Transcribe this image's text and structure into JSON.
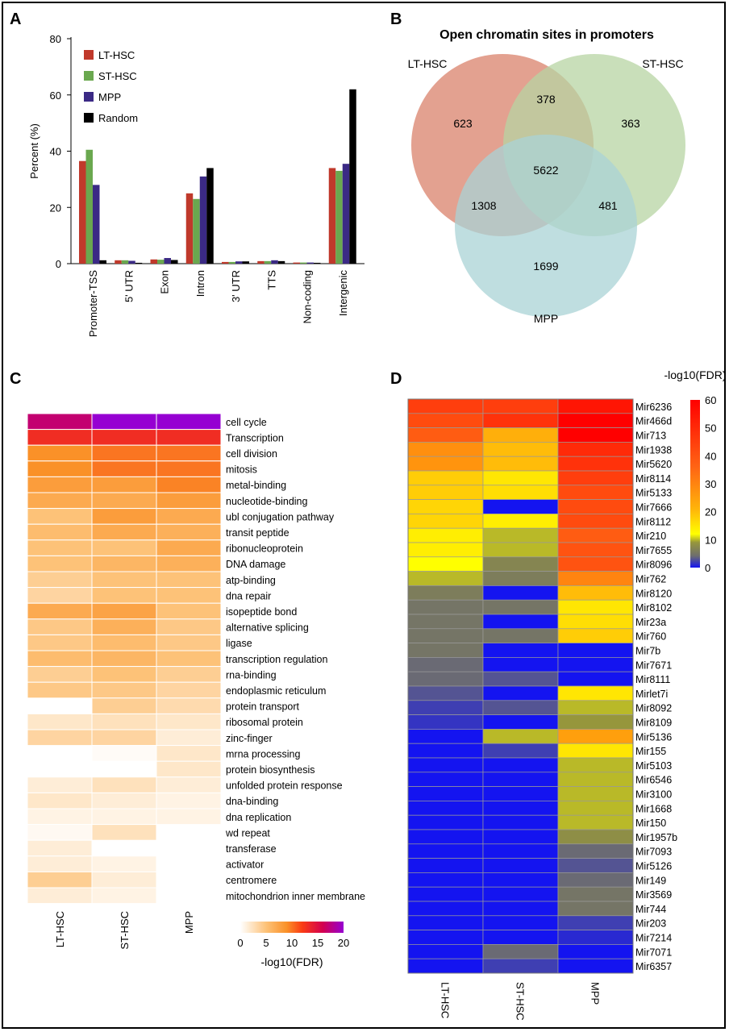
{
  "panels": {
    "a": "A",
    "b": "B",
    "c": "C",
    "d": "D"
  },
  "chart_data": [
    {
      "type": "bar",
      "ylabel": "Percent (%)",
      "ylim": [
        0,
        80
      ],
      "yticks": [
        "0",
        "20",
        "40",
        "60",
        "80"
      ],
      "categories": [
        "Promoter-TSS",
        "5' UTR",
        "Exon",
        "Intron",
        "3' UTR",
        "TTS",
        "Non-coding",
        "Intergenic"
      ],
      "series": [
        {
          "name": "LT-HSC",
          "color": "#c0392b",
          "values": [
            36.5,
            1.2,
            1.5,
            25,
            0.6,
            0.9,
            0.4,
            34
          ]
        },
        {
          "name": "ST-HSC",
          "color": "#6aa84f",
          "values": [
            40.5,
            1.2,
            1.4,
            23,
            0.6,
            0.9,
            0.4,
            33
          ]
        },
        {
          "name": "MPP",
          "color": "#3b2a85",
          "values": [
            28,
            1.0,
            2.0,
            31,
            0.8,
            1.2,
            0.4,
            35.5
          ]
        },
        {
          "name": "Random",
          "color": "#000000",
          "values": [
            1.2,
            0.3,
            1.3,
            34,
            0.8,
            0.9,
            0.3,
            62
          ]
        }
      ],
      "legend_position": "top-left"
    },
    {
      "type": "venn",
      "title": "Open chromatin sites in promoters",
      "sets": [
        {
          "name": "LT-HSC",
          "color": "#d9826b"
        },
        {
          "name": "ST-HSC",
          "color": "#b7d4a3"
        },
        {
          "name": "MPP",
          "color": "#a9d3d6"
        }
      ],
      "regions": {
        "lt_only": "623",
        "st_only": "363",
        "mpp_only": "1699",
        "lt_st": "378",
        "lt_mpp": "1308",
        "st_mpp": "481",
        "all": "5622"
      }
    },
    {
      "type": "heatmap",
      "columns": [
        "LT-HSC",
        "ST-HSC",
        "MPP"
      ],
      "rows": [
        "cell cycle",
        "Transcription",
        "cell division",
        "mitosis",
        "metal-binding",
        "nucleotide-binding",
        "ubl conjugation pathway",
        "transit peptide",
        "ribonucleoprotein",
        "DNA damage",
        "atp-binding",
        "dna repair",
        "isopeptide bond",
        "alternative splicing",
        "ligase",
        "transcription regulation",
        "rna-binding",
        "endoplasmic reticulum",
        "protein transport",
        "ribosomal protein",
        "zinc-finger",
        "mrna processing",
        "protein biosynthesis",
        "unfolded protein response",
        "dna-binding",
        "dna replication",
        "wd repeat",
        "transferase",
        "activator",
        "centromere",
        "mitochondrion inner membrane"
      ],
      "values": [
        [
          17,
          20,
          20
        ],
        [
          13,
          13,
          13
        ],
        [
          9,
          10,
          10
        ],
        [
          9,
          10,
          10
        ],
        [
          8,
          8,
          9.5
        ],
        [
          7,
          7,
          8
        ],
        [
          5,
          8,
          7
        ],
        [
          5.5,
          7,
          6.5
        ],
        [
          5,
          5,
          7
        ],
        [
          5,
          6,
          6.5
        ],
        [
          4,
          5,
          5
        ],
        [
          3.5,
          5,
          5
        ],
        [
          7,
          7.5,
          5
        ],
        [
          4.5,
          6.5,
          4.5
        ],
        [
          4.5,
          5.5,
          4.5
        ],
        [
          5.5,
          6,
          5
        ],
        [
          4,
          5,
          4
        ],
        [
          4.5,
          4.5,
          3.5
        ],
        [
          null,
          4,
          3
        ],
        [
          2,
          2.5,
          2
        ],
        [
          3.5,
          3.5,
          1.5
        ],
        [
          null,
          0.3,
          2
        ],
        [
          null,
          null,
          2
        ],
        [
          1.5,
          2.5,
          1.5
        ],
        [
          2,
          1.5,
          1
        ],
        [
          1,
          1,
          1
        ],
        [
          0.5,
          2.5,
          null
        ],
        [
          1.5,
          null,
          null
        ],
        [
          1.5,
          1,
          null
        ],
        [
          4,
          1.5,
          null
        ],
        [
          1.5,
          1,
          null
        ]
      ],
      "colorbar": {
        "label": "-log10(FDR)",
        "ticks": [
          "0",
          "5",
          "10",
          "15",
          "20"
        ],
        "range": [
          0,
          20
        ]
      }
    },
    {
      "type": "heatmap",
      "columns": [
        "LT-HSC",
        "ST-HSC",
        "MPP"
      ],
      "rows": [
        "Mir6236",
        "Mir466d",
        "Mir713",
        "Mir1938",
        "Mir5620",
        "Mir8114",
        "Mir5133",
        "Mir7666",
        "Mir8112",
        "Mir210",
        "Mir7655",
        "Mir8096",
        "Mir762",
        "Mir8120",
        "Mir8102",
        "Mir23a",
        "Mir760",
        "Mir7b",
        "Mir7671",
        "Mir8111",
        "Mirlet7i",
        "Mir8092",
        "Mir8109",
        "Mir5136",
        "Mir155",
        "Mir5103",
        "Mir6546",
        "Mir3100",
        "Mir1668",
        "Mir150",
        "Mir1957b",
        "Mir7093",
        "Mir5126",
        "Mir149",
        "Mir3569",
        "Mir744",
        "Mir203",
        "Mir7214",
        "Mir7071",
        "Mir6357"
      ],
      "values": [
        [
          45,
          45,
          55
        ],
        [
          42,
          48,
          60
        ],
        [
          38,
          22,
          60
        ],
        [
          28,
          20,
          50
        ],
        [
          27,
          20,
          48
        ],
        [
          18,
          15,
          45
        ],
        [
          18,
          16,
          42
        ],
        [
          17,
          0,
          42
        ],
        [
          17,
          14,
          42
        ],
        [
          14,
          10,
          38
        ],
        [
          14,
          10,
          40
        ],
        [
          12,
          7,
          40
        ],
        [
          10,
          6,
          30
        ],
        [
          6,
          0,
          20
        ],
        [
          5,
          5,
          15
        ],
        [
          5,
          0,
          16
        ],
        [
          5,
          5,
          18
        ],
        [
          5,
          0,
          0
        ],
        [
          4,
          0,
          0
        ],
        [
          4,
          3,
          0
        ],
        [
          3,
          0,
          15
        ],
        [
          2,
          3,
          10
        ],
        [
          1.5,
          0,
          9
        ],
        [
          0,
          10,
          25
        ],
        [
          0,
          2,
          15
        ],
        [
          0,
          0,
          10
        ],
        [
          0,
          0,
          10
        ],
        [
          0,
          0,
          10
        ],
        [
          0,
          0,
          10
        ],
        [
          0,
          0,
          10
        ],
        [
          0,
          0,
          8
        ],
        [
          0,
          0,
          4
        ],
        [
          0,
          0,
          3
        ],
        [
          0,
          0,
          4
        ],
        [
          0,
          0,
          5
        ],
        [
          0,
          0,
          5
        ],
        [
          0,
          0,
          2
        ],
        [
          0,
          0,
          1
        ],
        [
          0,
          4,
          0
        ],
        [
          0,
          2,
          0
        ]
      ],
      "colorbar": {
        "label": "-log10(FDR)",
        "ticks": [
          "60",
          "50",
          "40",
          "30",
          "20",
          "10",
          "0"
        ],
        "range": [
          0,
          60
        ]
      }
    }
  ]
}
